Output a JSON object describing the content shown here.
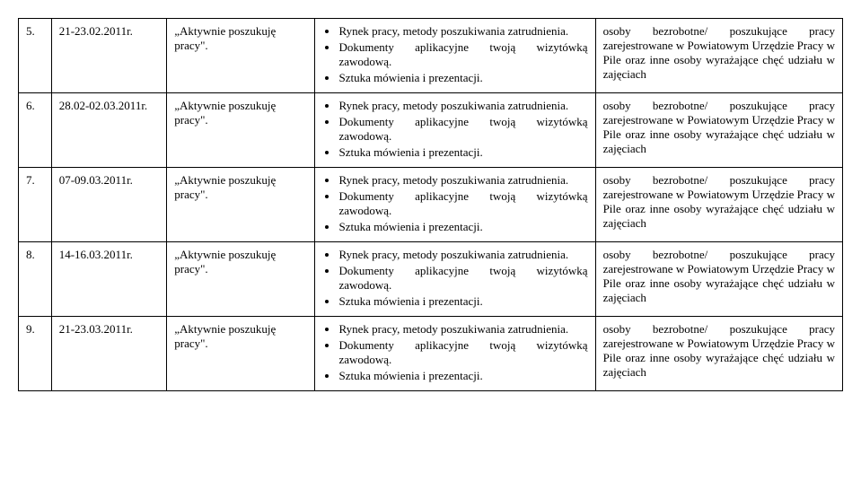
{
  "rows": [
    {
      "num": "5.",
      "date": "21-23.02.2011r.",
      "title": "„Aktywnie poszukuję pracy\".",
      "bullets": [
        "Rynek pracy, metody poszukiwania zatrudnienia.",
        "Dokumenty aplikacyjne twoją wizytówką zawodową.",
        "Sztuka mówienia i prezentacji."
      ],
      "audience": "osoby bezrobotne/ poszukujące pracy zarejestrowane w Powiatowym Urzędzie Pracy w Pile oraz inne osoby wyrażające chęć udziału w zajęciach"
    },
    {
      "num": "6.",
      "date": "28.02-02.03.2011r.",
      "title": "„Aktywnie poszukuję pracy\".",
      "bullets": [
        "Rynek pracy, metody poszukiwania zatrudnienia.",
        "Dokumenty aplikacyjne twoją wizytówką zawodową.",
        "Sztuka mówienia i prezentacji."
      ],
      "audience": "osoby bezrobotne/ poszukujące pracy zarejestrowane w Powiatowym Urzędzie Pracy w Pile oraz inne osoby wyrażające chęć udziału w zajęciach"
    },
    {
      "num": "7.",
      "date": "07-09.03.2011r.",
      "title": "„Aktywnie poszukuję pracy\".",
      "bullets": [
        "Rynek pracy, metody poszukiwania zatrudnienia.",
        "Dokumenty aplikacyjne twoją wizytówką zawodową.",
        "Sztuka mówienia i prezentacji."
      ],
      "audience": "osoby bezrobotne/ poszukujące pracy zarejestrowane w Powiatowym Urzędzie Pracy w Pile oraz inne osoby wyrażające chęć udziału w zajęciach"
    },
    {
      "num": "8.",
      "date": "14-16.03.2011r.",
      "title": "„Aktywnie poszukuję pracy\".",
      "bullets": [
        "Rynek pracy, metody poszukiwania zatrudnienia.",
        "Dokumenty aplikacyjne twoją wizytówką zawodową.",
        "Sztuka mówienia i prezentacji."
      ],
      "audience": "osoby bezrobotne/ poszukujące pracy zarejestrowane w Powiatowym Urzędzie Pracy w Pile oraz inne osoby wyrażające chęć udziału w zajęciach"
    },
    {
      "num": "9.",
      "date": "21-23.03.2011r.",
      "title": "„Aktywnie poszukuję pracy\".",
      "bullets": [
        "Rynek pracy, metody poszukiwania zatrudnienia.",
        "Dokumenty aplikacyjne twoją wizytówką zawodową.",
        "Sztuka mówienia i prezentacji."
      ],
      "audience": "osoby bezrobotne/ poszukujące pracy zarejestrowane w Powiatowym Urzędzie Pracy w Pile oraz inne osoby wyrażające chęć udziału w zajęciach"
    }
  ]
}
